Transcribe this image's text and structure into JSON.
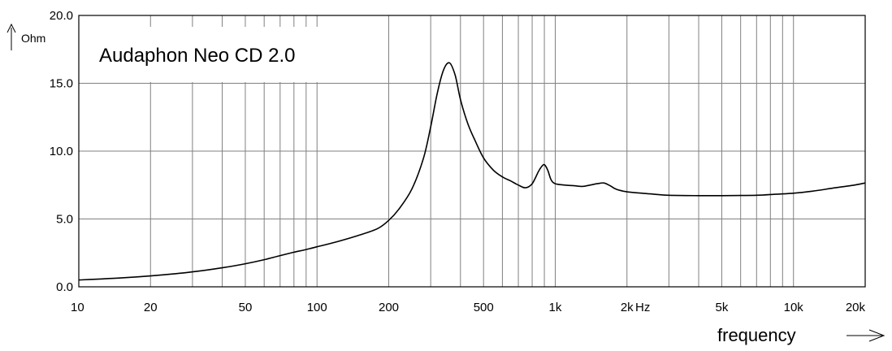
{
  "chart_data": {
    "type": "line",
    "title": "Audaphon Neo CD 2.0",
    "ylabel": "Ohm",
    "xlabel": "frequency",
    "x_unit": "Hz",
    "x_scale": "log",
    "xlim": [
      10,
      20000
    ],
    "ylim": [
      0,
      20
    ],
    "grid": true,
    "x_ticks": [
      {
        "value": 10,
        "label": "10"
      },
      {
        "value": 20,
        "label": "20"
      },
      {
        "value": 50,
        "label": "50"
      },
      {
        "value": 100,
        "label": "100"
      },
      {
        "value": 200,
        "label": "200"
      },
      {
        "value": 500,
        "label": "500"
      },
      {
        "value": 1000,
        "label": "1k"
      },
      {
        "value": 2000,
        "label": "2k"
      },
      {
        "value": 5000,
        "label": "5k"
      },
      {
        "value": 10000,
        "label": "10k"
      },
      {
        "value": 20000,
        "label": "20k"
      }
    ],
    "y_ticks": [
      {
        "value": 0,
        "label": "0.0"
      },
      {
        "value": 5,
        "label": "5.0"
      },
      {
        "value": 10,
        "label": "10.0"
      },
      {
        "value": 15,
        "label": "15.0"
      },
      {
        "value": 20,
        "label": "20.0"
      }
    ],
    "series": [
      {
        "color": "#000000",
        "x": [
          10,
          15,
          20,
          25,
          30,
          40,
          50,
          60,
          70,
          80,
          90,
          100,
          120,
          150,
          180,
          200,
          220,
          250,
          280,
          300,
          320,
          340,
          360,
          380,
          400,
          430,
          460,
          500,
          550,
          600,
          650,
          700,
          750,
          800,
          850,
          880,
          900,
          930,
          960,
          1000,
          1100,
          1200,
          1300,
          1400,
          1500,
          1600,
          1700,
          1800,
          2000,
          2500,
          3000,
          4000,
          5000,
          6000,
          7000,
          8000,
          10000,
          12000,
          15000,
          18000,
          20000
        ],
        "y": [
          0.5,
          0.65,
          0.8,
          0.95,
          1.1,
          1.4,
          1.7,
          2.0,
          2.3,
          2.55,
          2.75,
          2.95,
          3.3,
          3.8,
          4.3,
          4.9,
          5.7,
          7.2,
          9.5,
          11.8,
          14.3,
          16.0,
          16.5,
          15.6,
          13.8,
          12.0,
          10.8,
          9.5,
          8.6,
          8.1,
          7.8,
          7.5,
          7.3,
          7.6,
          8.5,
          8.9,
          9.0,
          8.6,
          7.9,
          7.6,
          7.5,
          7.45,
          7.4,
          7.5,
          7.6,
          7.65,
          7.45,
          7.2,
          7.0,
          6.85,
          6.75,
          6.72,
          6.72,
          6.73,
          6.75,
          6.8,
          6.9,
          7.05,
          7.3,
          7.5,
          7.65
        ]
      }
    ]
  }
}
